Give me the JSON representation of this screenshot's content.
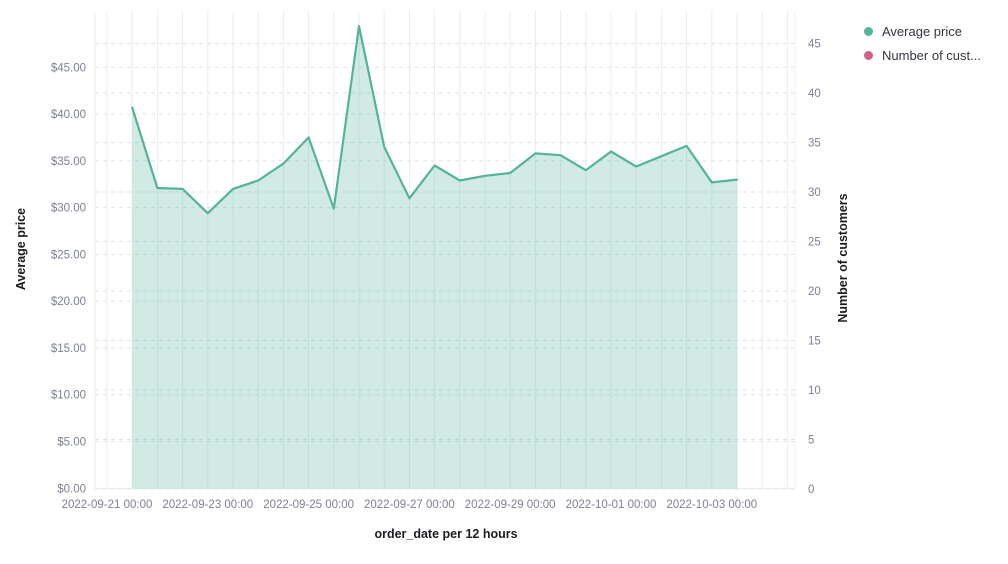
{
  "legend": {
    "items": [
      {
        "label": "Average price",
        "color": "#54B399"
      },
      {
        "label": "Number of cust...",
        "color": "#D36086"
      }
    ]
  },
  "axes": {
    "left": {
      "title": "Average price",
      "tick_values": [
        0,
        5,
        10,
        15,
        20,
        25,
        30,
        35,
        40,
        45
      ],
      "tick_labels": [
        "$0.00",
        "$5.00",
        "$10.00",
        "$15.00",
        "$20.00",
        "$25.00",
        "$30.00",
        "$35.00",
        "$40.00",
        "$45.00"
      ]
    },
    "right": {
      "title": "Number of customers",
      "tick_values": [
        0,
        5,
        10,
        15,
        20,
        25,
        30,
        35,
        40,
        45
      ],
      "tick_labels": [
        "0",
        "5",
        "10",
        "15",
        "20",
        "25",
        "30",
        "35",
        "40",
        "45"
      ]
    },
    "x": {
      "title": "order_date per 12 hours",
      "tick_labels": [
        "2022-09-21 00:00",
        "2022-09-23 00:00",
        "2022-09-25 00:00",
        "2022-09-27 00:00",
        "2022-09-29 00:00",
        "2022-10-01 00:00",
        "2022-10-03 00:00"
      ]
    }
  },
  "chart_data": {
    "type": "area",
    "title": "",
    "xlabel": "order_date per 12 hours",
    "ylabel_left": "Average price",
    "ylabel_right": "Number of customers",
    "ylim_left": [
      0,
      51
    ],
    "ylim_right": [
      0,
      48
    ],
    "x_interval": "12h",
    "x": [
      "2022-09-21 12:00",
      "2022-09-22 00:00",
      "2022-09-22 12:00",
      "2022-09-23 00:00",
      "2022-09-23 12:00",
      "2022-09-24 00:00",
      "2022-09-24 12:00",
      "2022-09-25 00:00",
      "2022-09-25 12:00",
      "2022-09-26 00:00",
      "2022-09-26 12:00",
      "2022-09-27 00:00",
      "2022-09-27 12:00",
      "2022-09-28 00:00",
      "2022-09-28 12:00",
      "2022-09-29 00:00",
      "2022-09-29 12:00",
      "2022-09-30 00:00",
      "2022-09-30 12:00",
      "2022-10-01 00:00",
      "2022-10-01 12:00",
      "2022-10-02 00:00",
      "2022-10-02 12:00",
      "2022-10-03 00:00",
      "2022-10-03 12:00"
    ],
    "series": [
      {
        "name": "Average price",
        "axis": "left",
        "color": "#54B399",
        "fill_opacity": 0.27,
        "values": [
          40.7,
          32.1,
          32.0,
          29.4,
          32.0,
          32.9,
          34.7,
          37.5,
          29.9,
          49.4,
          36.5,
          31.0,
          34.5,
          32.9,
          33.4,
          33.7,
          35.8,
          35.6,
          34.0,
          36.0,
          34.4,
          35.5,
          36.6,
          32.7,
          33.0
        ]
      },
      {
        "name": "Number of customers",
        "axis": "right",
        "color": "#D36086",
        "values": []
      }
    ],
    "grid": {
      "horizontal": "dashed",
      "vertical": "solid"
    },
    "legend_position": "top-right"
  }
}
